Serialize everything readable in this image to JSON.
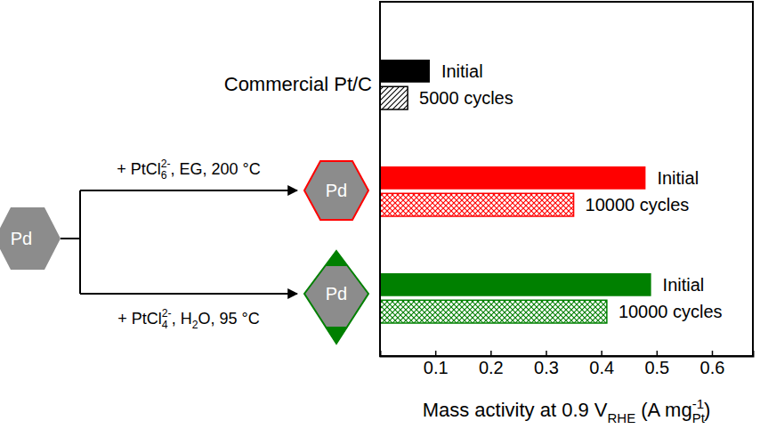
{
  "chart_data": {
    "type": "bar",
    "orientation": "horizontal",
    "categories": [
      "Commercial Pt/C",
      null,
      null
    ],
    "series": [
      {
        "labels": [
          "Initial",
          "Initial",
          "Initial"
        ],
        "colors": [
          "#000000",
          "#ff0000",
          "#008000"
        ],
        "values": [
          0.09,
          0.48,
          0.49
        ]
      },
      {
        "labels": [
          "5000 cycles",
          "10000 cycles",
          "10000 cycles"
        ],
        "colors": [
          "#000000",
          "#ff0000",
          "#008000"
        ],
        "values": [
          0.05,
          0.35,
          0.41
        ]
      }
    ],
    "xlabel": [
      {
        "text": "Mass activity at 0.9 V"
      },
      {
        "sub": "RHE"
      },
      {
        "text": " (A mg"
      },
      {
        "sub": "Pt",
        "sup": "-1"
      },
      {
        "text": ")"
      }
    ],
    "xlim": [
      0,
      0.674
    ],
    "xticks": [
      0.1,
      0.2,
      0.3,
      0.4,
      0.5,
      0.6
    ],
    "grid": false
  },
  "diagram": {
    "precursor": "Pd",
    "routes": [
      {
        "conditions": [
          {
            "text": "+ PtCl"
          },
          {
            "sub": "6",
            "sup": "2-"
          },
          {
            "text": ", EG, 200 °C"
          }
        ],
        "product": "Pd"
      },
      {
        "conditions": [
          {
            "text": "+ PtCl"
          },
          {
            "sub": "4",
            "sup": "2-"
          },
          {
            "text": ", H"
          },
          {
            "sub": "2"
          },
          {
            "text": "O, 95 °C"
          }
        ],
        "product": "Pd"
      }
    ]
  }
}
